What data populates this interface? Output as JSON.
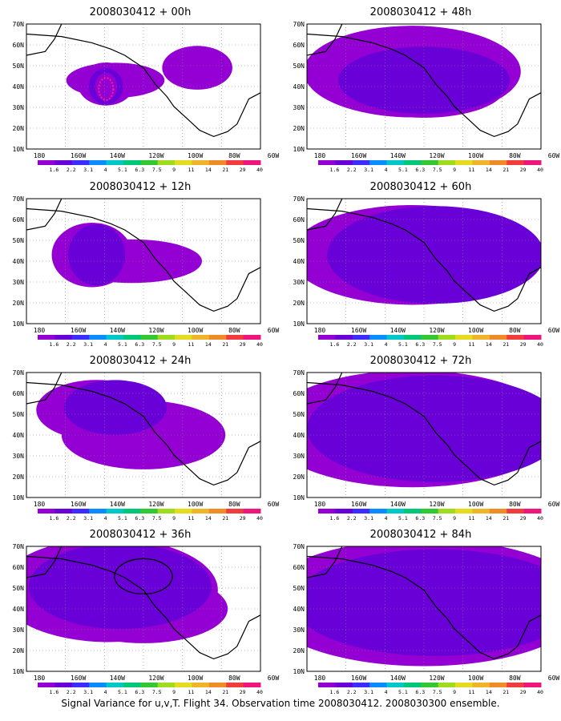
{
  "map": {
    "lat_labels": [
      "70N",
      "60N",
      "50N",
      "40N",
      "30N",
      "20N",
      "10N"
    ],
    "lon_labels": [
      "180",
      "160W",
      "140W",
      "120W",
      "100W",
      "80W",
      "60W"
    ],
    "colorbar_labels": [
      "1.6",
      "2.2",
      "3.1",
      "4",
      "5.1",
      "6.3",
      "7.5",
      "9",
      "11",
      "14",
      "21",
      "29",
      "40"
    ],
    "colorbar_colors": [
      "#9400d3",
      "#6a00d8",
      "#3c2cff",
      "#0a8cff",
      "#00c8c8",
      "#00c878",
      "#32c832",
      "#a0dc1e",
      "#e6dc1e",
      "#f0b428",
      "#f08c28",
      "#f03c3c",
      "#f0147d"
    ],
    "land_color": "#ffffff",
    "coastline_color": "#000000"
  },
  "panels": [
    {
      "title": "2008030412 + 00h"
    },
    {
      "title": "2008030412 + 48h"
    },
    {
      "title": "2008030412 + 12h"
    },
    {
      "title": "2008030412 + 60h"
    },
    {
      "title": "2008030412 + 24h"
    },
    {
      "title": "2008030412 + 72h"
    },
    {
      "title": "2008030412 + 36h"
    },
    {
      "title": "2008030412 + 84h"
    }
  ],
  "caption": "Signal Variance for u,v,T. Flight 34. Observation time 2008030412. 2008030300 ensemble."
}
